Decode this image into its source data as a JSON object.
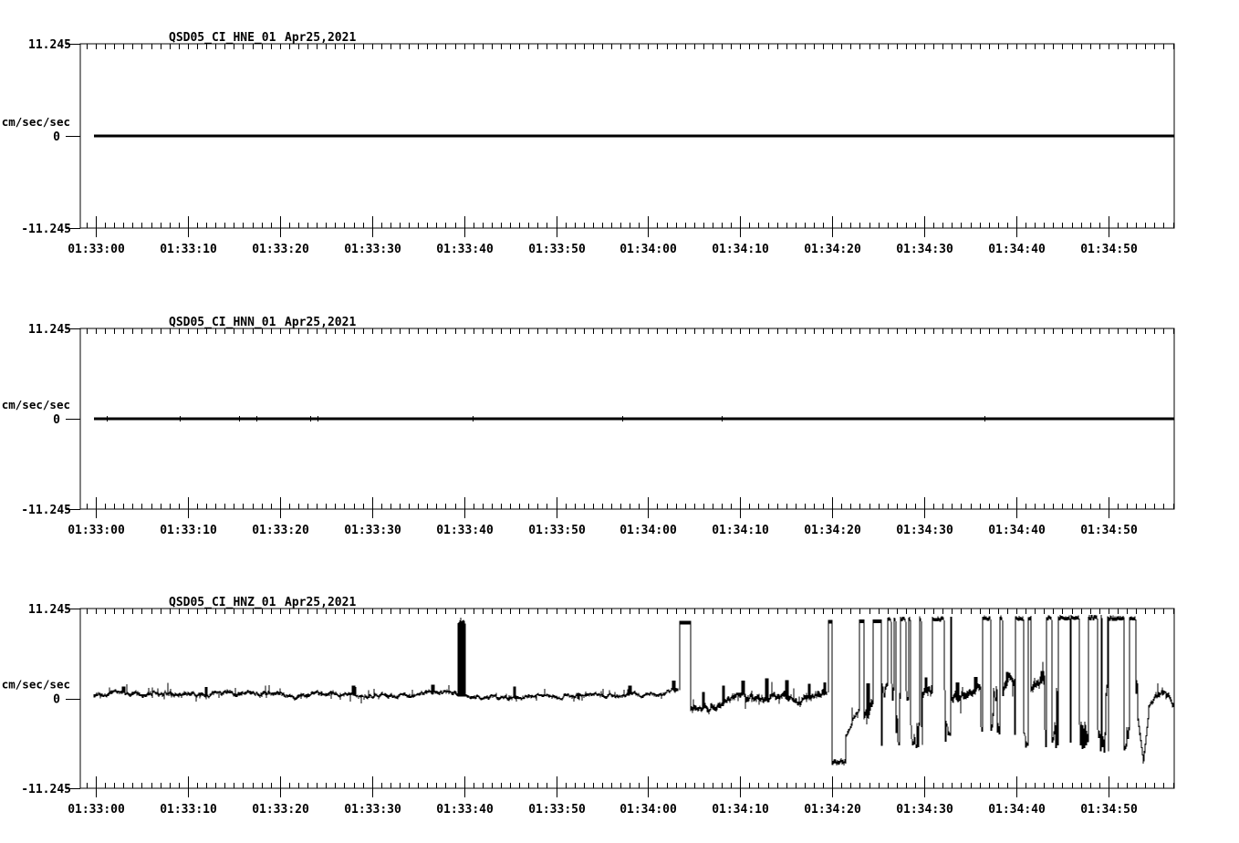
{
  "page": {
    "background": "#ffffff",
    "ink": "#000000"
  },
  "chart_data": [
    {
      "type": "line",
      "station": "QSD05_CI_HNE_01",
      "date": "Apr25,2021",
      "ylabel": "cm/sec/sec",
      "ylim": [
        -11.245,
        11.245
      ],
      "yticks": [
        {
          "label": "11.245",
          "value": 11.245
        },
        {
          "label": "0",
          "value": 0
        },
        {
          "label": "-11.245",
          "value": -11.245
        }
      ],
      "xticks": [
        "01:33:00",
        "01:33:10",
        "01:33:20",
        "01:33:30",
        "01:33:40",
        "01:33:50",
        "01:34:00",
        "01:34:10",
        "01:34:20",
        "01:34:30",
        "01:34:40",
        "01:34:50"
      ],
      "xtick_interval_seconds": 10,
      "x_range_seconds": [
        -0.2,
        117.15
      ],
      "grid": false,
      "waveform": {
        "kind": "flat",
        "value": 0,
        "blips": []
      }
    },
    {
      "type": "line",
      "station": "QSD05_CI_HNN_01",
      "date": "Apr25,2021",
      "ylabel": "cm/sec/sec",
      "ylim": [
        -11.245,
        11.245
      ],
      "yticks": [
        {
          "label": "11.245",
          "value": 11.245
        },
        {
          "label": "0",
          "value": 0
        },
        {
          "label": "-11.245",
          "value": -11.245
        }
      ],
      "xticks": [
        "01:33:00",
        "01:33:10",
        "01:33:20",
        "01:33:30",
        "01:33:40",
        "01:33:50",
        "01:34:00",
        "01:34:10",
        "01:34:20",
        "01:34:30",
        "01:34:40",
        "01:34:50"
      ],
      "xtick_interval_seconds": 10,
      "x_range_seconds": [
        -0.2,
        117.15
      ],
      "grid": false,
      "waveform": {
        "kind": "flat",
        "value": 0,
        "blips": [
          1.2,
          9.1,
          15.6,
          17.4,
          23.3,
          24.1,
          40.9,
          57.2,
          68.0,
          96.5
        ]
      }
    },
    {
      "type": "line",
      "station": "QSD05_CI_HNZ_01",
      "date": "Apr25,2021",
      "ylabel": "cm/sec/sec",
      "ylim": [
        -11.245,
        11.245
      ],
      "yticks": [
        {
          "label": "11.245",
          "value": 11.245
        },
        {
          "label": "0",
          "value": 0
        },
        {
          "label": "-11.245",
          "value": -11.245
        }
      ],
      "xticks": [
        "01:33:00",
        "01:33:10",
        "01:33:20",
        "01:33:30",
        "01:33:40",
        "01:33:50",
        "01:34:00",
        "01:34:10",
        "01:34:20",
        "01:34:30",
        "01:34:40",
        "01:34:50"
      ],
      "xtick_interval_seconds": 10,
      "x_range_seconds": [
        -0.2,
        117.15
      ],
      "grid": false,
      "waveform": {
        "kind": "segments",
        "seed": 1337,
        "clip_top": 9.8,
        "segments": [
          {
            "kind": "noise",
            "t0": -0.2,
            "t1": 39.3,
            "amp": 0.34,
            "bp": [
              [
                -0.2,
                0.45
              ],
              [
                2,
                0.75
              ],
              [
                5,
                0.55
              ],
              [
                9,
                0.7
              ],
              [
                13,
                0.5
              ],
              [
                16,
                0.65
              ],
              [
                19,
                0.8
              ],
              [
                21,
                0.25
              ],
              [
                24,
                0.45
              ],
              [
                27,
                0.7
              ],
              [
                29,
                0.3
              ],
              [
                32,
                0.4
              ],
              [
                35,
                0.55
              ],
              [
                37,
                0.85
              ],
              [
                39.3,
                0.75
              ]
            ],
            "spikes": [
              [
                3,
                1.5
              ],
              [
                12,
                1.4
              ],
              [
                28,
                1.6
              ],
              [
                36.6,
                1.7
              ]
            ]
          },
          {
            "kind": "spike",
            "t": 39.6,
            "peak": 10.3,
            "w": 0.45
          },
          {
            "kind": "spike",
            "t": 39.95,
            "peak": 10.15,
            "w": 0.45
          },
          {
            "kind": "noise",
            "t0": 40.2,
            "t1": 63.2,
            "amp": 0.3,
            "bp": [
              [
                40.2,
                0.5
              ],
              [
                42,
                0.15
              ],
              [
                44,
                0.1
              ],
              [
                47,
                0.35
              ],
              [
                50,
                0.3
              ],
              [
                53,
                0.45
              ],
              [
                56,
                0.3
              ],
              [
                59,
                0.5
              ],
              [
                61,
                0.55
              ],
              [
                63.2,
                1.2
              ]
            ],
            "spikes": [
              [
                45.5,
                1.5
              ],
              [
                58,
                1.6
              ],
              [
                62.8,
                2.2
              ]
            ]
          },
          {
            "kind": "pulse",
            "t0": 63.45,
            "t1": 64.6,
            "top": 9.65,
            "after": -1.35
          },
          {
            "kind": "noise",
            "t0": 64.6,
            "t1": 67.5,
            "amp": 0.55,
            "bp": [
              [
                64.6,
                -1.2
              ],
              [
                65.5,
                -1.5
              ],
              [
                66.5,
                -0.9
              ],
              [
                67.5,
                -0.6
              ]
            ],
            "spikes": [
              [
                66,
                0.8
              ]
            ]
          },
          {
            "kind": "noise",
            "t0": 67.5,
            "t1": 79.4,
            "amp": 0.55,
            "bp": [
              [
                67.5,
                -0.4
              ],
              [
                69,
                -0.1
              ],
              [
                70.5,
                0.2
              ],
              [
                72,
                -0.35
              ],
              [
                73.5,
                0.05
              ],
              [
                75,
                0.3
              ],
              [
                76.5,
                -0.2
              ],
              [
                78,
                0.3
              ],
              [
                79.4,
                0.9
              ]
            ],
            "spikes": [
              [
                68.2,
                1.6
              ],
              [
                70.3,
                2.2
              ],
              [
                72.9,
                2.5
              ],
              [
                75.1,
                2.3
              ],
              [
                77.5,
                1.8
              ],
              [
                79.2,
                2.0
              ]
            ]
          },
          {
            "kind": "pulse",
            "t0": 79.6,
            "t1": 80.0,
            "top": 9.75,
            "after": -7.6
          },
          {
            "kind": "lowflat",
            "t0": 80.0,
            "t1": 81.5,
            "level": -7.9,
            "amp": 0.25
          },
          {
            "kind": "ramp",
            "t0": 81.5,
            "t1": 82.2,
            "v0": -4.8,
            "v1": -3.2,
            "amp": 0.3
          },
          {
            "kind": "noise",
            "t0": 82.2,
            "t1": 82.9,
            "amp": 0.5,
            "bp": [
              [
                82.2,
                -2.7
              ],
              [
                82.9,
                -1.6
              ]
            ]
          },
          {
            "kind": "pulse",
            "t0": 83.0,
            "t1": 83.45,
            "top": 9.8,
            "after": -2.6
          },
          {
            "kind": "noise",
            "t0": 83.45,
            "t1": 84.3,
            "amp": 0.7,
            "bp": [
              [
                83.45,
                -1.8
              ],
              [
                84.3,
                -0.5
              ]
            ],
            "spikes": [
              [
                83.9,
                1.9
              ]
            ]
          },
          {
            "kind": "pulse",
            "t0": 84.4,
            "t1": 85.3,
            "top": 9.8,
            "after": -5.0
          },
          {
            "kind": "burst",
            "t0": 85.3,
            "t1": 87.3,
            "top": 9.8,
            "bmin": -6.3,
            "bmax": -2.5,
            "p": [
              0.33,
              0.34,
              0.33
            ],
            "dT": [
              1,
              4
            ],
            "dB": [
              1,
              4
            ],
            "dM": [
              1,
              5
            ]
          },
          {
            "kind": "noise",
            "t0": 87.3,
            "t1": 87.35,
            "amp": 0.6,
            "bp": [
              [
                87.3,
                0.3
              ],
              [
                87.35,
                0.4
              ]
            ]
          },
          {
            "kind": "burst",
            "t0": 87.35,
            "t1": 89.8,
            "top": 9.9,
            "bmin": -6.8,
            "bmax": -3.0,
            "flats": [
              [
                87.45,
                87.95
              ]
            ],
            "p": [
              0.38,
              0.42,
              0.2
            ],
            "dT": [
              1,
              4
            ],
            "dB": [
              1,
              5
            ],
            "dM": [
              1,
              3
            ]
          },
          {
            "kind": "noise",
            "t0": 89.8,
            "t1": 90.9,
            "amp": 0.9,
            "bp": [
              [
                89.8,
                1.0
              ],
              [
                90.4,
                1.6
              ],
              [
                90.9,
                1.1
              ]
            ],
            "spikes": [
              [
                90.2,
                2.6
              ]
            ]
          },
          {
            "kind": "burst",
            "t0": 90.9,
            "t1": 93.0,
            "top": 9.9,
            "bmin": -5.8,
            "bmax": -2.8,
            "flats": [
              [
                91.15,
                92.15
              ]
            ],
            "p": [
              0.4,
              0.4,
              0.2
            ],
            "dT": [
              1,
              4
            ],
            "dB": [
              1,
              5
            ],
            "dM": [
              1,
              3
            ]
          },
          {
            "kind": "noise",
            "t0": 93.0,
            "t1": 96.1,
            "amp": 0.8,
            "bp": [
              [
                93.0,
                0.3
              ],
              [
                94,
                0.9
              ],
              [
                94.6,
                0.1
              ],
              [
                95.3,
                1.2
              ],
              [
                96.1,
                1.9
              ]
            ],
            "spikes": [
              [
                93.6,
                2.0
              ],
              [
                95.6,
                2.7
              ]
            ]
          },
          {
            "kind": "burst",
            "t0": 96.1,
            "t1": 98.6,
            "top": 10.0,
            "bmin": -4.8,
            "bmax": -2.0,
            "flats": [
              [
                96.25,
                96.85
              ]
            ],
            "p": [
              0.35,
              0.4,
              0.25
            ],
            "dT": [
              1,
              4
            ],
            "dB": [
              1,
              5
            ],
            "dM": [
              1,
              4
            ]
          },
          {
            "kind": "noise",
            "t0": 98.6,
            "t1": 99.8,
            "amp": 0.8,
            "bp": [
              [
                98.6,
                1.6
              ],
              [
                99.2,
                2.4
              ],
              [
                99.8,
                1.8
              ]
            ],
            "spikes": [
              [
                99.0,
                3.3
              ]
            ]
          },
          {
            "kind": "burst",
            "t0": 99.8,
            "t1": 101.6,
            "top": 10.0,
            "bmin": -6.6,
            "bmax": -3.0,
            "flats": [
              [
                99.9,
                100.7
              ]
            ],
            "p": [
              0.4,
              0.4,
              0.2
            ],
            "dT": [
              1,
              4
            ],
            "dB": [
              1,
              5
            ],
            "dM": [
              1,
              3
            ]
          },
          {
            "kind": "noise",
            "t0": 101.6,
            "t1": 103.1,
            "amp": 0.8,
            "bp": [
              [
                101.6,
                1.0
              ],
              [
                102.3,
                1.7
              ],
              [
                103.1,
                2.7
              ]
            ],
            "spikes": [
              [
                102.8,
                3.4
              ]
            ]
          },
          {
            "kind": "burst",
            "t0": 103.1,
            "t1": 110.0,
            "top": 10.05,
            "bmin": -6.8,
            "bmax": -3.2,
            "flats": [
              [
                103.2,
                103.85
              ],
              [
                104.5,
                105.55
              ],
              [
                107.8,
                108.4
              ]
            ],
            "p": [
              0.38,
              0.44,
              0.18
            ],
            "dT": [
              1,
              4
            ],
            "dB": [
              1,
              5
            ],
            "dM": [
              1,
              3
            ]
          },
          {
            "kind": "burst",
            "t0": 110.0,
            "t1": 111.7,
            "top": 10.0,
            "bmin": -6.2,
            "bmax": -3.0,
            "flats": [
              [
                110.25,
                111.25
              ]
            ],
            "p": [
              0.4,
              0.4,
              0.2
            ],
            "dT": [
              1,
              4
            ],
            "dB": [
              1,
              5
            ],
            "dM": [
              1,
              3
            ]
          },
          {
            "kind": "burst",
            "t0": 111.7,
            "t1": 113.2,
            "top": 10.0,
            "bmin": -7.6,
            "bmax": -3.5,
            "flats": [
              [
                112.2,
                112.9
              ]
            ],
            "p": [
              0.35,
              0.35,
              0.3
            ],
            "dT": [
              1,
              4
            ],
            "dB": [
              1,
              6
            ],
            "dM": [
              1,
              5
            ]
          },
          {
            "kind": "ramp",
            "t0": 113.2,
            "t1": 113.75,
            "v0": -2.5,
            "v1": -7.9,
            "amp": 0.35
          },
          {
            "kind": "ramp",
            "t0": 113.75,
            "t1": 114.4,
            "v0": -7.9,
            "v1": -1.6,
            "amp": 0.35
          },
          {
            "kind": "noise",
            "t0": 114.4,
            "t1": 117.15,
            "amp": 0.45,
            "bp": [
              [
                114.4,
                -0.8
              ],
              [
                115.2,
                0.2
              ],
              [
                116,
                0.55
              ],
              [
                116.6,
                0.15
              ],
              [
                117.15,
                -1.0
              ]
            ]
          }
        ]
      }
    }
  ]
}
